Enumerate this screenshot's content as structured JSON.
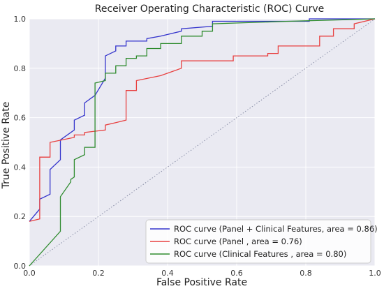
{
  "chart_data": {
    "type": "line",
    "title": "Receiver Operating Characteristic (ROC) Curve",
    "xlabel": "False Positive Rate",
    "ylabel": "True Positive Rate",
    "xlim": [
      0.0,
      1.0
    ],
    "ylim": [
      0.0,
      1.0
    ],
    "xticks": [
      0.0,
      0.2,
      0.4,
      0.6,
      0.8,
      1.0
    ],
    "yticks": [
      0.0,
      0.2,
      0.4,
      0.6,
      0.8,
      1.0
    ],
    "xtick_labels": [
      "0.0",
      "0.2",
      "0.4",
      "0.6",
      "0.8",
      "1.0"
    ],
    "ytick_labels": [
      "0.0",
      "0.2",
      "0.4",
      "0.6",
      "0.8",
      "1.0"
    ],
    "grid": true,
    "legend_position": "lower-right",
    "reference_line": {
      "x": [
        0.0,
        1.0
      ],
      "y": [
        0.0,
        1.0
      ],
      "color": "#8a8fa8",
      "style": "dotted"
    },
    "series": [
      {
        "name": "ROC curve (Panel + Clinical Features, area = 0.86)",
        "color": "#3333cc",
        "x": [
          0.0,
          0.0,
          0.03,
          0.03,
          0.06,
          0.06,
          0.09,
          0.09,
          0.13,
          0.13,
          0.16,
          0.16,
          0.19,
          0.19,
          0.22,
          0.22,
          0.25,
          0.25,
          0.28,
          0.28,
          0.34,
          0.34,
          0.38,
          0.38,
          0.44,
          0.44,
          0.53,
          0.53,
          0.81,
          0.81,
          1.0
        ],
        "y": [
          0.18,
          0.18,
          0.23,
          0.27,
          0.29,
          0.39,
          0.43,
          0.51,
          0.55,
          0.59,
          0.61,
          0.66,
          0.69,
          0.69,
          0.76,
          0.85,
          0.87,
          0.89,
          0.89,
          0.91,
          0.91,
          0.92,
          0.93,
          0.93,
          0.95,
          0.96,
          0.97,
          0.99,
          0.99,
          1.0,
          1.0
        ]
      },
      {
        "name": "ROC curve (Panel , area = 0.76)",
        "color": "#e84040",
        "x": [
          0.0,
          0.0,
          0.03,
          0.03,
          0.06,
          0.06,
          0.13,
          0.13,
          0.16,
          0.16,
          0.22,
          0.22,
          0.25,
          0.28,
          0.28,
          0.31,
          0.31,
          0.38,
          0.44,
          0.44,
          0.5,
          0.5,
          0.59,
          0.59,
          0.69,
          0.69,
          0.72,
          0.72,
          0.84,
          0.84,
          0.88,
          0.88,
          0.94,
          0.94,
          1.0
        ],
        "y": [
          0.18,
          0.18,
          0.19,
          0.44,
          0.44,
          0.5,
          0.52,
          0.53,
          0.53,
          0.54,
          0.55,
          0.57,
          0.58,
          0.59,
          0.71,
          0.71,
          0.75,
          0.77,
          0.8,
          0.83,
          0.83,
          0.83,
          0.83,
          0.85,
          0.85,
          0.86,
          0.86,
          0.89,
          0.89,
          0.93,
          0.93,
          0.96,
          0.96,
          0.98,
          1.0
        ]
      },
      {
        "name": "ROC curve (Clinical Features , area = 0.80)",
        "color": "#2e8b2e",
        "x": [
          0.0,
          0.09,
          0.09,
          0.12,
          0.12,
          0.13,
          0.13,
          0.16,
          0.16,
          0.19,
          0.19,
          0.22,
          0.22,
          0.25,
          0.25,
          0.28,
          0.28,
          0.31,
          0.31,
          0.34,
          0.34,
          0.38,
          0.38,
          0.44,
          0.44,
          0.5,
          0.5,
          0.53,
          0.53,
          0.75,
          0.75,
          1.0
        ],
        "y": [
          0.0,
          0.14,
          0.28,
          0.34,
          0.35,
          0.36,
          0.43,
          0.45,
          0.48,
          0.48,
          0.74,
          0.75,
          0.78,
          0.78,
          0.81,
          0.81,
          0.84,
          0.84,
          0.85,
          0.85,
          0.88,
          0.88,
          0.9,
          0.9,
          0.93,
          0.93,
          0.95,
          0.95,
          0.98,
          0.99,
          0.99,
          1.0
        ]
      }
    ]
  }
}
